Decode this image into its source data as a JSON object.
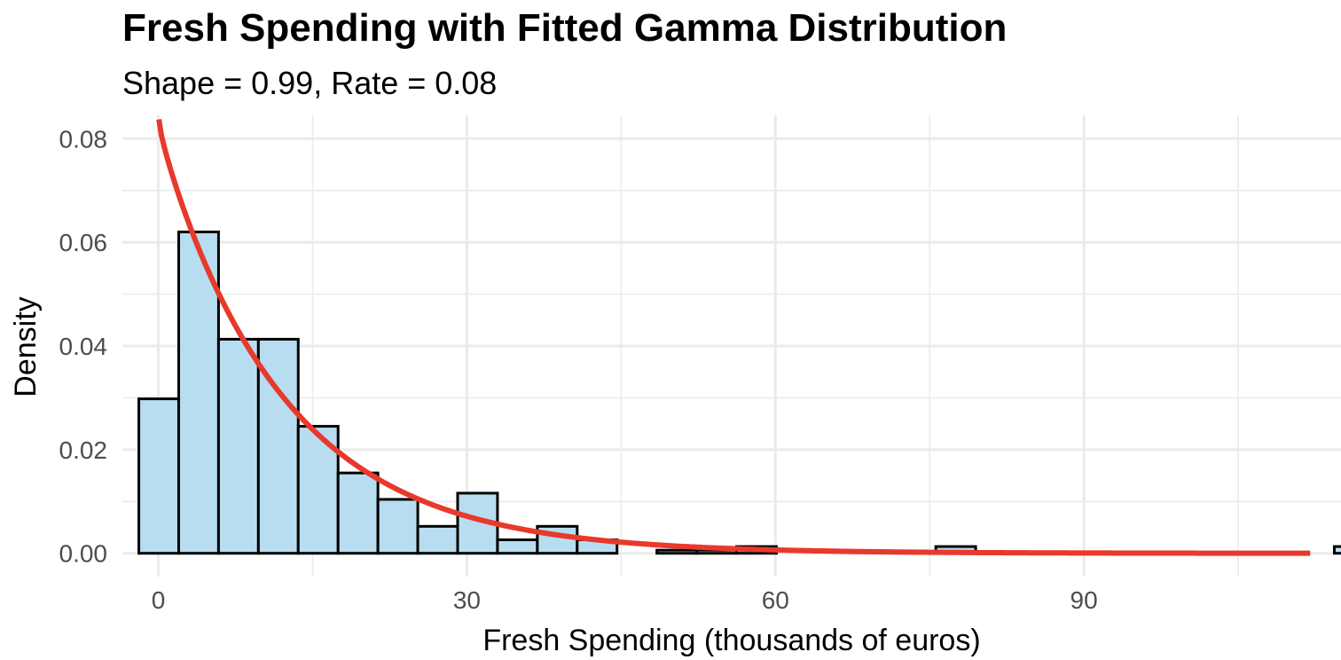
{
  "chart_data": {
    "type": "bar",
    "subtype": "histogram_with_density_curve",
    "title": "Fresh Spending with Fitted Gamma Distribution",
    "subtitle": "Shape = 0.99, Rate = 0.08",
    "xlabel": "Fresh Spending (thousands of euros)",
    "ylabel": "Density",
    "xlim": [
      -3.5,
      115
    ],
    "ylim": [
      -0.0045,
      0.0845
    ],
    "x_ticks": [
      0,
      30,
      60,
      90
    ],
    "x_tick_labels": [
      "0",
      "30",
      "60",
      "90"
    ],
    "y_ticks": [
      0,
      0.02,
      0.04,
      0.06,
      0.08
    ],
    "y_tick_labels": [
      "0.00",
      "0.02",
      "0.04",
      "0.06",
      "0.08"
    ],
    "grid": true,
    "histogram": {
      "bin_width": 3.875,
      "first_bin_start": -1.9,
      "fill_color": "#b8ddf0",
      "border_color": "#000000",
      "density": [
        0.0298,
        0.062,
        0.0413,
        0.0413,
        0.0245,
        0.0155,
        0.0104,
        0.0052,
        0.0116,
        0.0026,
        0.0052,
        0.0026,
        0.0,
        0.0006,
        0.0006,
        0.0013,
        0.0,
        0.0,
        0.0,
        0.0,
        0.0013,
        0.0,
        0.0,
        0.0,
        0.0,
        0.0,
        0.0,
        0.0,
        0.0,
        0.0,
        0.0013
      ]
    },
    "fitted_curve": {
      "name": "Fitted Gamma Distribution",
      "distribution": "gamma",
      "shape": 0.99,
      "rate": 0.08,
      "x_range": [
        0,
        112
      ],
      "color": "#e8392b"
    }
  }
}
